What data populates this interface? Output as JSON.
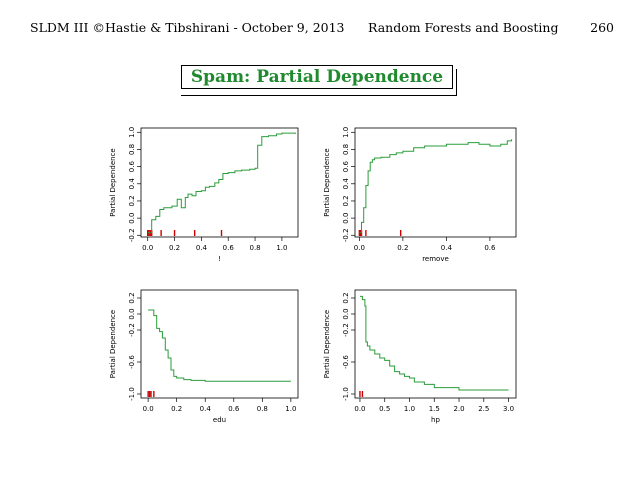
{
  "header": {
    "left": "SLDM III ©Hastie & Tibshirani - October 9, 2013",
    "middle": "Random Forests and Boosting",
    "page": "260"
  },
  "slide_title": "Spam: Partial Dependence",
  "colors": {
    "curve": "#2a9d3a",
    "rug": "#cc0000",
    "title": "#1f8a2e"
  },
  "chart_data": [
    {
      "type": "line",
      "xlabel": "!",
      "ylabel": "Partial Dependence",
      "xlim": [
        -0.05,
        1.12
      ],
      "ylim": [
        -0.22,
        1.05
      ],
      "xticks": [
        0.0,
        0.2,
        0.4,
        0.6,
        0.8,
        1.0
      ],
      "xtick_labels": [
        "0.0",
        "0.2",
        "0.4",
        "0.6",
        "0.8",
        "1.0"
      ],
      "yticks": [
        -0.2,
        0.0,
        0.2,
        0.4,
        0.6,
        0.8,
        1.0
      ],
      "ytick_labels": [
        "-0.2",
        "0.0",
        "0.2",
        "0.4",
        "0.6",
        "0.8",
        "1.0"
      ],
      "x": [
        0.0,
        0.02,
        0.03,
        0.05,
        0.06,
        0.08,
        0.09,
        0.12,
        0.15,
        0.18,
        0.2,
        0.22,
        0.25,
        0.28,
        0.3,
        0.33,
        0.36,
        0.4,
        0.43,
        0.46,
        0.5,
        0.53,
        0.56,
        0.6,
        0.65,
        0.7,
        0.76,
        0.8,
        0.82,
        0.85,
        0.9,
        0.96,
        1.0,
        1.1
      ],
      "y": [
        -0.17,
        -0.17,
        -0.02,
        -0.02,
        0.02,
        0.02,
        0.1,
        0.12,
        0.12,
        0.14,
        0.14,
        0.22,
        0.12,
        0.24,
        0.28,
        0.26,
        0.31,
        0.32,
        0.36,
        0.37,
        0.41,
        0.45,
        0.52,
        0.53,
        0.55,
        0.56,
        0.57,
        0.58,
        0.85,
        0.95,
        0.96,
        0.98,
        0.99,
        0.98
      ],
      "rug": [
        0.0,
        0.01,
        0.02,
        0.03,
        0.1,
        0.2,
        0.35,
        0.55
      ]
    },
    {
      "type": "line",
      "xlabel": "remove",
      "ylabel": "Partial Dependence",
      "xlim": [
        -0.02,
        0.72
      ],
      "ylim": [
        -0.22,
        1.05
      ],
      "xticks": [
        0.0,
        0.2,
        0.4,
        0.6
      ],
      "xtick_labels": [
        "0.0",
        "0.2",
        "0.4",
        "0.6"
      ],
      "yticks": [
        -0.2,
        0.0,
        0.2,
        0.4,
        0.6,
        0.8,
        1.0
      ],
      "ytick_labels": [
        "-0.2",
        "0.0",
        "0.2",
        "0.4",
        "0.6",
        "0.8",
        "1.0"
      ],
      "x": [
        0.0,
        0.01,
        0.02,
        0.03,
        0.04,
        0.05,
        0.06,
        0.07,
        0.1,
        0.14,
        0.17,
        0.2,
        0.25,
        0.3,
        0.4,
        0.5,
        0.55,
        0.6,
        0.65,
        0.68,
        0.7
      ],
      "y": [
        -0.17,
        -0.05,
        0.12,
        0.38,
        0.55,
        0.65,
        0.68,
        0.7,
        0.71,
        0.74,
        0.76,
        0.78,
        0.82,
        0.84,
        0.86,
        0.88,
        0.86,
        0.84,
        0.86,
        0.9,
        0.92
      ],
      "rug": [
        0.0,
        0.005,
        0.01,
        0.03,
        0.19
      ]
    },
    {
      "type": "line",
      "xlabel": "edu",
      "ylabel": "Partial Dependence",
      "xlim": [
        -0.05,
        1.05
      ],
      "ylim": [
        -1.05,
        0.3
      ],
      "xticks": [
        0.0,
        0.2,
        0.4,
        0.6,
        0.8,
        1.0
      ],
      "xtick_labels": [
        "0.0",
        "0.2",
        "0.4",
        "0.6",
        "0.8",
        "1.0"
      ],
      "yticks": [
        -1.0,
        -0.6,
        -0.2,
        0.0,
        0.2
      ],
      "ytick_labels": [
        "-1.0",
        "-0.6",
        "-0.2",
        "0.0",
        "0.2"
      ],
      "x": [
        0.0,
        0.02,
        0.04,
        0.06,
        0.08,
        0.1,
        0.12,
        0.14,
        0.16,
        0.18,
        0.2,
        0.25,
        0.3,
        0.4,
        0.5,
        0.7,
        1.0
      ],
      "y": [
        0.05,
        0.05,
        -0.02,
        -0.18,
        -0.22,
        -0.3,
        -0.45,
        -0.55,
        -0.7,
        -0.78,
        -0.8,
        -0.82,
        -0.83,
        -0.84,
        -0.84,
        -0.84,
        -0.84
      ],
      "rug": [
        0.0,
        0.01,
        0.02,
        0.04
      ]
    },
    {
      "type": "line",
      "xlabel": "hp",
      "ylabel": "Partial Dependence",
      "xlim": [
        -0.1,
        3.15
      ],
      "ylim": [
        -1.05,
        0.3
      ],
      "xticks": [
        0.0,
        0.5,
        1.0,
        1.5,
        2.0,
        2.5,
        3.0
      ],
      "xtick_labels": [
        "0.0",
        "0.5",
        "1.0",
        "1.5",
        "2.0",
        "2.5",
        "3.0"
      ],
      "yticks": [
        -1.0,
        -0.6,
        -0.2,
        0.0,
        0.2
      ],
      "ytick_labels": [
        "-1.0",
        "-0.6",
        "-0.2",
        "0.0",
        "0.2"
      ],
      "x": [
        0.0,
        0.05,
        0.1,
        0.12,
        0.15,
        0.2,
        0.3,
        0.4,
        0.5,
        0.6,
        0.7,
        0.8,
        0.9,
        1.0,
        1.1,
        1.3,
        1.5,
        2.0,
        2.5,
        3.0
      ],
      "y": [
        0.22,
        0.18,
        0.1,
        -0.35,
        -0.4,
        -0.45,
        -0.5,
        -0.55,
        -0.58,
        -0.65,
        -0.72,
        -0.75,
        -0.78,
        -0.8,
        -0.85,
        -0.88,
        -0.92,
        -0.95,
        -0.95,
        -0.95
      ],
      "rug": [
        0.0,
        0.05
      ]
    }
  ]
}
